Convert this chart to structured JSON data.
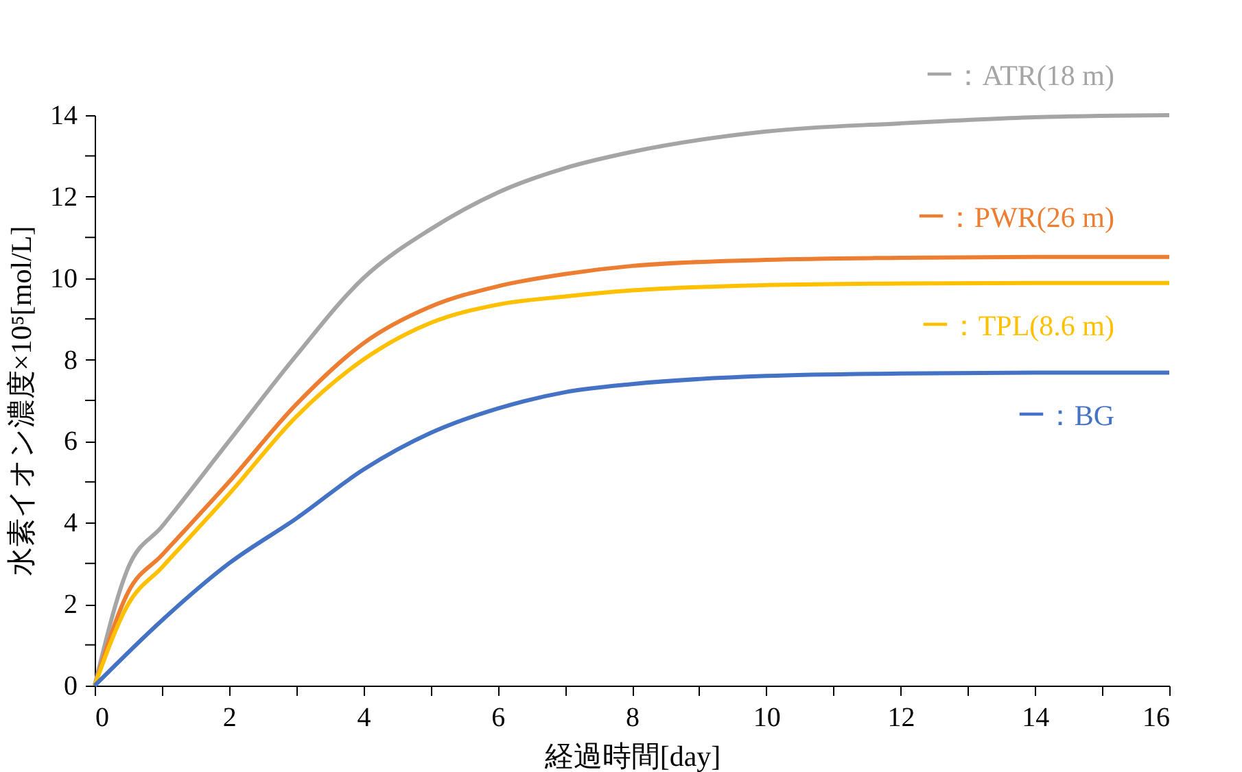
{
  "chart_data": {
    "type": "line",
    "xlabel": "経過時間[day]",
    "ylabel": "水素イオン濃度×10⁵[mol/L]",
    "xlim": [
      0,
      16
    ],
    "ylim": [
      0,
      14
    ],
    "xticks": [
      0,
      {
        "value": 1,
        "label": null
      },
      2,
      {
        "value": 3,
        "label": null
      },
      4,
      {
        "value": 5,
        "label": null
      },
      6,
      {
        "value": 7,
        "label": null
      },
      8,
      {
        "value": 9,
        "label": null
      },
      10,
      {
        "value": 11,
        "label": null
      },
      12,
      {
        "value": 13,
        "label": null
      },
      14,
      {
        "value": 15,
        "label": null
      },
      16
    ],
    "yticks": [
      0,
      {
        "value": 1,
        "label": null
      },
      2,
      {
        "value": 3,
        "label": null
      },
      4,
      {
        "value": 5,
        "label": null
      },
      6,
      {
        "value": 7,
        "label": null
      },
      8,
      {
        "value": 9,
        "label": null
      },
      10,
      {
        "value": 11,
        "label": null
      },
      12,
      {
        "value": 13,
        "label": null
      },
      14
    ],
    "grid": false,
    "legend": "right",
    "marker": "none",
    "line_style": "solid",
    "series": [
      {
        "name": "ー：ATR(18 m)",
        "color": "#a5a5a5",
        "x": [
          0,
          0.5,
          1,
          2,
          3,
          4,
          5,
          6,
          7,
          8,
          10,
          12,
          14,
          16
        ],
        "values": [
          0,
          2.9,
          3.9,
          6.0,
          8.1,
          10.0,
          11.2,
          12.1,
          12.7,
          13.1,
          13.6,
          13.8,
          13.95,
          14.0
        ]
      },
      {
        "name": "ー：PWR(26 m)",
        "color": "#ed7d31",
        "x": [
          0,
          0.5,
          1,
          2,
          3,
          4,
          5,
          6,
          7,
          8,
          10,
          12,
          14,
          16
        ],
        "values": [
          0,
          2.3,
          3.2,
          5.0,
          6.9,
          8.4,
          9.3,
          9.8,
          10.1,
          10.3,
          10.45,
          10.5,
          10.52,
          10.52
        ]
      },
      {
        "name": "ー：TPL(8.6 m)",
        "color": "#ffc000",
        "x": [
          0,
          0.5,
          1,
          2,
          3,
          4,
          5,
          6,
          7,
          8,
          10,
          12,
          14,
          16
        ],
        "values": [
          0,
          2.0,
          2.9,
          4.7,
          6.6,
          8.0,
          8.9,
          9.35,
          9.55,
          9.7,
          9.83,
          9.87,
          9.88,
          9.88
        ]
      },
      {
        "name": "ー：BG",
        "color": "#4472c4",
        "x": [
          0,
          1,
          2,
          3,
          4,
          5,
          6,
          7,
          8,
          10,
          12,
          14,
          16
        ],
        "values": [
          0,
          1.6,
          3.0,
          4.1,
          5.3,
          6.2,
          6.8,
          7.2,
          7.4,
          7.6,
          7.66,
          7.68,
          7.68
        ]
      }
    ]
  }
}
